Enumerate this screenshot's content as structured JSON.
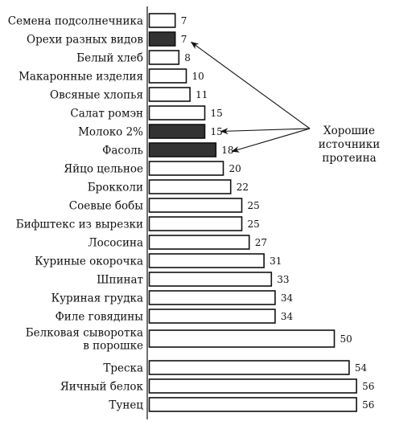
{
  "chart_data": {
    "type": "bar",
    "orientation": "horizontal",
    "categories": [
      "Семена подсолнечника",
      "Орехи разных видов",
      "Белый хлеб",
      "Макаронные изделия",
      "Овсяные хлопья",
      "Салат ромэн",
      "Молоко 2%",
      "Фасоль",
      "Яйцо цельное",
      "Брокколи",
      "Соевые бобы",
      "Бифштекс из вырезки",
      "Лососина",
      "Куриные окорочка",
      "Шпинат",
      "Куриная грудка",
      "Филе говядины",
      "Белковая сыворотка\nв порошке",
      "Треска",
      "Яичный белок",
      "Тунец"
    ],
    "values": [
      7,
      7,
      8,
      10,
      11,
      15,
      15,
      18,
      20,
      22,
      25,
      25,
      27,
      31,
      33,
      34,
      34,
      50,
      54,
      56,
      56
    ],
    "highlighted": [
      false,
      true,
      false,
      false,
      false,
      false,
      true,
      true,
      false,
      false,
      false,
      false,
      false,
      false,
      false,
      false,
      false,
      false,
      false,
      false,
      false
    ],
    "colors": {
      "highlight": "#333333",
      "normal": "#ffffff",
      "outline": "#111111"
    },
    "xlim": [
      0,
      60
    ],
    "grid": false,
    "title": "",
    "xlabel": "",
    "ylabel": "",
    "annotation": {
      "lines": [
        "Хорошие",
        "источники",
        "протеина"
      ],
      "points_to": [
        "Орехи разных видов",
        "Молоко 2%",
        "Фасоль"
      ]
    }
  }
}
